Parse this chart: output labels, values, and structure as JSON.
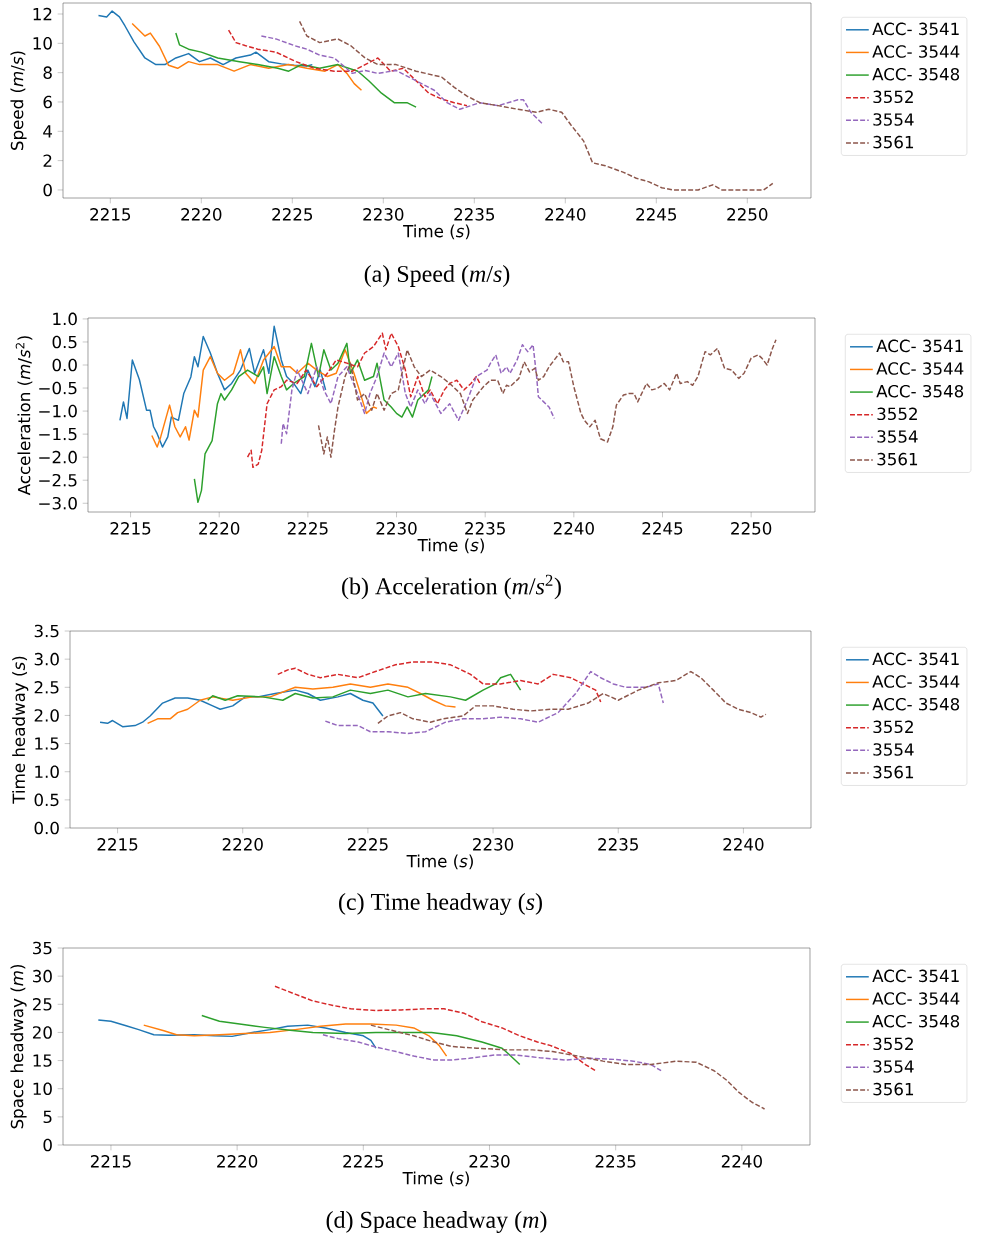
{
  "chart_data": [
    {
      "type": "line",
      "title": "(a) Speed (*m*/*s*)",
      "xlabel": "Time (*s*)",
      "ylabel": "Speed (*m*/*s*)",
      "xlim": [
        2212.4,
        2253.5
      ],
      "ylim": [
        -0.55,
        12.75
      ],
      "xticks": [
        2215,
        2220,
        2225,
        2230,
        2235,
        2240,
        2245,
        2250
      ],
      "yticks": [
        0,
        2,
        4,
        6,
        8,
        10,
        12
      ],
      "legend": "right",
      "series": [
        {
          "name": "ACC- 3541",
          "color": "#1f77b4",
          "line_style": "solid",
          "x": [
            2214.35,
            2214.8,
            2215.1,
            2215.5,
            2215.8,
            2216.3,
            2216.9,
            2217.5,
            2218,
            2218.6,
            2219.3,
            2219.9,
            2220.5,
            2221.2,
            2221.9,
            2222.7,
            2223,
            2223.7,
            2224.4,
            2225.1,
            2225.8,
            2226.1
          ],
          "values": [
            11.9,
            11.8,
            12.2,
            11.8,
            11.2,
            10.1,
            9.0,
            8.55,
            8.55,
            9.0,
            9.3,
            8.75,
            9.0,
            8.55,
            9.0,
            9.2,
            9.4,
            8.75,
            8.6,
            8.5,
            8.45,
            8.55
          ]
        },
        {
          "name": "ACC- 3544",
          "color": "#ff7f0e",
          "line_style": "solid",
          "x": [
            2216.2,
            2216.9,
            2217.2,
            2217.7,
            2218.2,
            2218.7,
            2219.3,
            2219.9,
            2220.9,
            2221.8,
            2222.7,
            2223.7,
            2224.8,
            2225.8,
            2226.8,
            2227.5,
            2228,
            2228.4,
            2228.8
          ],
          "values": [
            11.35,
            10.5,
            10.7,
            9.8,
            8.5,
            8.3,
            8.75,
            8.55,
            8.55,
            8.1,
            8.55,
            8.3,
            8.55,
            8.3,
            8.1,
            8.55,
            7.95,
            7.25,
            6.8
          ]
        },
        {
          "name": "ACC- 3548",
          "color": "#2ca02c",
          "line_style": "solid",
          "x": [
            2218.6,
            2218.8,
            2219.3,
            2220,
            2220.9,
            2222.1,
            2223.1,
            2224.2,
            2224.8,
            2225.5,
            2226.5,
            2227.5,
            2228.6,
            2229.2,
            2229.9,
            2230.6,
            2231.3,
            2231.8
          ],
          "values": [
            10.7,
            9.9,
            9.6,
            9.4,
            9.0,
            8.75,
            8.55,
            8.3,
            8.1,
            8.55,
            8.3,
            8.55,
            8.1,
            7.45,
            6.6,
            5.95,
            5.95,
            5.65
          ]
        },
        {
          "name": "3552",
          "color": "#d62728",
          "line_style": "dashed",
          "x": [
            2221.5,
            2221.9,
            2222.4,
            2223.1,
            2224.1,
            2225.2,
            2226.2,
            2227.3,
            2228.3,
            2229,
            2229.7,
            2230.4,
            2231.1,
            2231.8,
            2232.5,
            2233.2,
            2233.9,
            2234.6
          ],
          "values": [
            10.9,
            10.05,
            9.85,
            9.6,
            9.4,
            8.75,
            8.3,
            8.1,
            8.1,
            8.55,
            9.0,
            8.1,
            8.3,
            7.45,
            6.6,
            6.2,
            5.95,
            5.75
          ]
        },
        {
          "name": "3554",
          "color": "#9467bd",
          "line_style": "dashed",
          "x": [
            2223.3,
            2224.1,
            2225.1,
            2225.8,
            2226.5,
            2227.3,
            2228.3,
            2229,
            2229.7,
            2230.7,
            2231.8,
            2232.8,
            2233.5,
            2234.2,
            2235.3,
            2236.3,
            2237.4,
            2237.7,
            2238.1,
            2238.8
          ],
          "values": [
            10.5,
            10.3,
            9.85,
            9.6,
            9.2,
            9.0,
            7.95,
            8.15,
            7.95,
            8.15,
            7.45,
            6.8,
            5.95,
            5.5,
            5.95,
            5.75,
            6.15,
            6.15,
            5.3,
            4.45
          ]
        },
        {
          "name": "3561",
          "color": "#8c564b",
          "line_style": "dashed",
          "x": [
            2225.4,
            2225.8,
            2226.5,
            2227.5,
            2228.2,
            2229,
            2229.7,
            2230.7,
            2231.8,
            2233.2,
            2233.9,
            2234.6,
            2235.3,
            2236.3,
            2237.4,
            2238.4,
            2239.1,
            2239.8,
            2240.3,
            2241,
            2241.5,
            2242.2,
            2243.2,
            2243.9,
            2244.6,
            2245.3,
            2245.9,
            2247.3,
            2248.1,
            2248.6,
            2250.2,
            2250.9,
            2251.4
          ],
          "values": [
            11.5,
            10.5,
            10.05,
            10.3,
            9.85,
            9.0,
            8.55,
            8.55,
            8.1,
            7.7,
            7.0,
            6.4,
            5.95,
            5.75,
            5.5,
            5.3,
            5.5,
            5.3,
            4.45,
            3.35,
            1.85,
            1.65,
            1.2,
            0.8,
            0.55,
            0.15,
            0,
            0,
            0.35,
            0,
            0,
            0,
            0.45
          ]
        }
      ]
    },
    {
      "type": "line",
      "title": "(b) Acceleration (*m*/*s*$^{2}$)",
      "xlabel": "Time (*s*)",
      "ylabel": "Acceleration (*m*/*s*$^{2}$)",
      "xlim": [
        2212.6,
        2253.6
      ],
      "ylim": [
        -3.19,
        1.02
      ],
      "xticks": [
        2215,
        2220,
        2225,
        2230,
        2235,
        2240,
        2245,
        2250
      ],
      "yticks": [
        {
          "value": -3,
          "label": "−3.0"
        },
        {
          "value": -2.5,
          "label": "−2.5"
        },
        {
          "value": -2,
          "label": "−2.0"
        },
        {
          "value": -1.5,
          "label": "−1.5"
        },
        {
          "value": -1,
          "label": "−1.0"
        },
        {
          "value": -0.5,
          "label": "−0.5"
        },
        {
          "value": 0,
          "label": "0.0"
        },
        {
          "value": 0.5,
          "label": "0.5"
        },
        {
          "value": 1,
          "label": "1.0"
        }
      ],
      "legend": "right",
      "series": [
        {
          "name": "ACC- 3541",
          "color": "#1f77b4",
          "line_style": "solid",
          "x": [
            2214.4,
            2214.6,
            2214.8,
            2215.1,
            2215.5,
            2215.9,
            2216.1,
            2216.3,
            2216.5,
            2216.8,
            2217.1,
            2217.3,
            2217.7,
            2218.0,
            2218.4,
            2218.6,
            2218.8,
            2219.1,
            2219.5,
            2219.9,
            2220.3,
            2220.7,
            2221.2,
            2221.7,
            2222.0,
            2222.5,
            2222.8,
            2223.1,
            2223.5,
            2223.8,
            2224.2,
            2224.6,
            2225.0,
            2225.4,
            2225.7,
            2226.0
          ],
          "values": [
            -1.2,
            -0.8,
            -1.16,
            0.11,
            -0.32,
            -0.98,
            -0.98,
            -1.34,
            -1.49,
            -1.78,
            -1.56,
            -1.13,
            -1.2,
            -0.62,
            -0.26,
            0.18,
            -0.04,
            0.62,
            0.26,
            -0.18,
            -0.54,
            -0.4,
            -0.11,
            0.36,
            -0.18,
            0.33,
            -0.18,
            0.84,
            0.11,
            -0.25,
            -0.4,
            -0.62,
            -0.11,
            -0.47,
            -0.11,
            -0.54
          ]
        },
        {
          "name": "ACC- 3544",
          "color": "#ff7f0e",
          "line_style": "solid",
          "x": [
            2216.2,
            2216.5,
            2216.7,
            2217.2,
            2217.5,
            2217.8,
            2218.1,
            2218.3,
            2218.6,
            2218.8,
            2219.1,
            2219.5,
            2219.9,
            2220.3,
            2220.8,
            2221.2,
            2221.5,
            2222.0,
            2222.5,
            2223.1,
            2223.5,
            2224.0,
            2224.4,
            2225.0,
            2225.5,
            2226.1,
            2226.6,
            2227.1,
            2227.6,
            2227.9,
            2228.3,
            2228.7,
            2228.9
          ],
          "values": [
            -1.53,
            -1.78,
            -1.56,
            -0.87,
            -1.34,
            -1.56,
            -1.34,
            -1.63,
            -0.98,
            -1.13,
            -0.11,
            0.18,
            -0.18,
            -0.33,
            -0.18,
            0.33,
            -0.18,
            -0.4,
            0.11,
            0.4,
            -0.04,
            -0.04,
            -0.18,
            0.04,
            -0.11,
            -0.25,
            -0.18,
            0.33,
            -0.18,
            -0.54,
            -1.05,
            -0.91,
            -0.94
          ]
        },
        {
          "name": "ACC- 3548",
          "color": "#2ca02c",
          "line_style": "solid",
          "x": [
            2218.6,
            2218.8,
            2219.0,
            2219.2,
            2219.6,
            2219.9,
            2220.1,
            2220.3,
            2220.7,
            2221.1,
            2221.6,
            2222.2,
            2222.5,
            2222.7,
            2223.1,
            2223.5,
            2223.8,
            2224.2,
            2224.8,
            2225.2,
            2225.6,
            2225.9,
            2226.3,
            2226.7,
            2227.2,
            2227.4,
            2227.8,
            2228.2,
            2228.7,
            2228.9,
            2229.3,
            2229.7,
            2230.0,
            2230.3,
            2230.6,
            2230.9,
            2231.2,
            2231.8,
            2232.0
          ],
          "values": [
            -2.47,
            -2.98,
            -2.72,
            -1.93,
            -1.64,
            -0.84,
            -0.62,
            -0.76,
            -0.54,
            -0.25,
            -0.11,
            -0.25,
            -0.04,
            -0.62,
            0.18,
            -0.25,
            -0.54,
            -0.4,
            -0.25,
            0.47,
            -0.25,
            0.33,
            -0.11,
            0.04,
            0.47,
            -0.18,
            0.11,
            -0.33,
            -0.25,
            0.04,
            -0.76,
            -0.91,
            -1.05,
            -1.13,
            -0.91,
            -1.13,
            -0.76,
            -0.54,
            -0.25
          ]
        },
        {
          "name": "3552",
          "color": "#d62728",
          "line_style": "dashed",
          "x": [
            2221.6,
            2221.8,
            2221.9,
            2222.2,
            2222.4,
            2222.7,
            2223.1,
            2223.5,
            2223.8,
            2224.4,
            2224.9,
            2225.5,
            2226.1,
            2226.6,
            2227.2,
            2227.8,
            2228.2,
            2228.7,
            2229.2,
            2229.4,
            2229.7,
            2230.1,
            2230.5,
            2230.8,
            2231.2,
            2231.6,
            2231.9,
            2232.3,
            2232.7,
            2233.0,
            2233.4,
            2233.8,
            2234.2,
            2234.5,
            2234.7
          ],
          "values": [
            -2.0,
            -1.85,
            -2.22,
            -2.15,
            -1.85,
            -0.84,
            -0.54,
            -0.47,
            -0.33,
            -0.4,
            -0.11,
            -0.47,
            -0.18,
            0.11,
            0.04,
            -0.04,
            0.26,
            0.4,
            0.69,
            0.33,
            0.69,
            0.4,
            -0.11,
            -0.69,
            -0.25,
            -0.69,
            -0.54,
            -0.84,
            -0.54,
            -0.4,
            -0.33,
            -0.54,
            -0.4,
            -0.25,
            -0.4
          ]
        },
        {
          "name": "3554",
          "color": "#9467bd",
          "line_style": "dashed",
          "x": [
            2223.5,
            2223.6,
            2223.8,
            2224.1,
            2224.4,
            2225.0,
            2225.5,
            2225.9,
            2226.3,
            2226.7,
            2227.2,
            2227.8,
            2228.2,
            2228.5,
            2228.9,
            2229.3,
            2229.7,
            2230.1,
            2230.5,
            2230.8,
            2231.2,
            2231.6,
            2231.9,
            2232.5,
            2233.0,
            2233.5,
            2234.0,
            2234.5,
            2235.1,
            2235.3,
            2235.6,
            2235.9,
            2236.2,
            2236.4,
            2236.8,
            2237.1,
            2237.4,
            2237.7,
            2237.9,
            2238.0,
            2238.3,
            2238.6,
            2238.9
          ],
          "values": [
            -1.71,
            -1.27,
            -1.49,
            -0.54,
            -0.11,
            -0.62,
            -0.04,
            -0.54,
            -0.84,
            -0.25,
            -0.04,
            -0.62,
            -1.05,
            -0.62,
            -0.25,
            0.26,
            -0.04,
            0.26,
            -0.62,
            -0.91,
            -0.54,
            -0.84,
            -0.62,
            -1.05,
            -0.84,
            -1.2,
            -0.76,
            -0.25,
            -0.11,
            0.04,
            0.22,
            -0.18,
            -0.04,
            -0.18,
            0.11,
            0.44,
            0.29,
            0.44,
            -0.25,
            -0.69,
            -0.8,
            -0.91,
            -1.16
          ]
        },
        {
          "name": "3561",
          "color": "#8c564b",
          "line_style": "dashed",
          "x": [
            2225.6,
            2225.9,
            2226.1,
            2226.3,
            2226.5,
            2226.7,
            2227.1,
            2227.4,
            2227.8,
            2228.2,
            2228.6,
            2228.9,
            2229.3,
            2229.7,
            2230.1,
            2230.6,
            2231.0,
            2231.4,
            2231.9,
            2232.5,
            2233.0,
            2233.6,
            2234.0,
            2234.3,
            2234.9,
            2235.3,
            2235.7,
            2236.0,
            2236.2,
            2236.4,
            2236.9,
            2237.2,
            2237.5,
            2237.8,
            2238.0,
            2238.3,
            2238.6,
            2238.9,
            2239.2,
            2239.4,
            2239.7,
            2240.0,
            2240.4,
            2240.6,
            2240.9,
            2241.2,
            2241.5,
            2241.9,
            2242.2,
            2242.4,
            2242.8,
            2243.1,
            2243.4,
            2243.6,
            2244.1,
            2244.4,
            2244.7,
            2245.1,
            2245.4,
            2245.8,
            2246.0,
            2246.4,
            2246.7,
            2247.0,
            2247.4,
            2247.7,
            2248.1,
            2248.5,
            2248.9,
            2249.3,
            2249.6,
            2250.0,
            2250.4,
            2250.6,
            2250.9,
            2251.2,
            2251.4
          ],
          "values": [
            -1.31,
            -1.93,
            -1.56,
            -2.0,
            -1.42,
            -0.91,
            -0.25,
            0.04,
            -0.76,
            -0.62,
            -0.98,
            -0.62,
            -0.98,
            -0.62,
            -0.54,
            0.33,
            -0.04,
            -0.25,
            -0.11,
            -0.25,
            -0.4,
            -0.62,
            -1.05,
            -0.76,
            -0.47,
            -0.33,
            -0.33,
            -0.62,
            -0.44,
            -0.47,
            -0.29,
            0.07,
            -0.15,
            -0.07,
            -0.33,
            -0.25,
            -0.04,
            0.11,
            0.26,
            0.07,
            0.07,
            -0.47,
            -1.05,
            -1.2,
            -1.34,
            -1.2,
            -1.6,
            -1.67,
            -1.34,
            -0.87,
            -0.65,
            -0.62,
            -0.62,
            -0.8,
            -0.4,
            -0.54,
            -0.51,
            -0.4,
            -0.54,
            -0.18,
            -0.4,
            -0.36,
            -0.44,
            -0.25,
            0.29,
            0.22,
            0.36,
            -0.07,
            -0.11,
            -0.29,
            -0.18,
            0.15,
            0.22,
            0.15,
            0.0,
            0.36,
            0.55
          ]
        }
      ]
    },
    {
      "type": "line",
      "title": "(c) Time headway (*s*)",
      "xlabel": "Time (*s*)",
      "ylabel": "Time headway (*s*)",
      "xlim": [
        2213.1,
        2242.7
      ],
      "ylim": [
        0,
        3.5
      ],
      "xticks": [
        2215,
        2220,
        2225,
        2230,
        2235,
        2240
      ],
      "yticks": [
        {
          "value": 0,
          "label": "0.0"
        },
        {
          "value": 0.5,
          "label": "0.5"
        },
        {
          "value": 1,
          "label": "1.0"
        },
        {
          "value": 1.5,
          "label": "1.5"
        },
        {
          "value": 2,
          "label": "2.0"
        },
        {
          "value": 2.5,
          "label": "2.5"
        },
        {
          "value": 3,
          "label": "3.0"
        },
        {
          "value": 3.5,
          "label": "3.5"
        }
      ],
      "legend": "right",
      "series": [
        {
          "name": "ACC- 3541",
          "color": "#1f77b4",
          "line_style": "solid",
          "x": [
            2214.3,
            2214.6,
            2214.8,
            2215.2,
            2215.7,
            2216.0,
            2216.3,
            2216.8,
            2217.3,
            2217.8,
            2218.3,
            2218.8,
            2219.1,
            2219.6,
            2220.1,
            2220.6,
            2221.3,
            2222.1,
            2222.6,
            2223.1,
            2223.8,
            2224.3,
            2224.8,
            2225.2,
            2225.6
          ],
          "values": [
            1.88,
            1.86,
            1.91,
            1.8,
            1.82,
            1.88,
            1.99,
            2.22,
            2.31,
            2.31,
            2.27,
            2.17,
            2.11,
            2.17,
            2.33,
            2.33,
            2.39,
            2.45,
            2.39,
            2.27,
            2.33,
            2.39,
            2.27,
            2.22,
            1.99
          ]
        },
        {
          "name": "ACC- 3544",
          "color": "#ff7f0e",
          "line_style": "solid",
          "x": [
            2216.2,
            2216.6,
            2217.1,
            2217.4,
            2217.8,
            2218.3,
            2218.8,
            2219.6,
            2220.4,
            2221.1,
            2222.1,
            2222.8,
            2223.6,
            2224.3,
            2225.1,
            2225.8,
            2226.6,
            2227.1,
            2227.6,
            2228.1,
            2228.5
          ],
          "values": [
            1.86,
            1.94,
            1.94,
            2.05,
            2.11,
            2.27,
            2.33,
            2.27,
            2.33,
            2.33,
            2.5,
            2.47,
            2.5,
            2.56,
            2.5,
            2.56,
            2.5,
            2.39,
            2.27,
            2.17,
            2.15
          ]
        },
        {
          "name": "ACC- 3548",
          "color": "#2ca02c",
          "line_style": "solid",
          "x": [
            2218.6,
            2218.8,
            2219.3,
            2219.8,
            2220.8,
            2221.6,
            2222.1,
            2222.8,
            2223.6,
            2224.3,
            2225.1,
            2225.8,
            2226.6,
            2227.3,
            2228.3,
            2228.9,
            2229.6,
            2230.1,
            2230.3,
            2230.7,
            2231.1
          ],
          "values": [
            2.27,
            2.35,
            2.27,
            2.35,
            2.33,
            2.27,
            2.39,
            2.31,
            2.33,
            2.45,
            2.39,
            2.45,
            2.33,
            2.39,
            2.33,
            2.27,
            2.45,
            2.56,
            2.67,
            2.73,
            2.45
          ]
        },
        {
          "name": "3552",
          "color": "#d62728",
          "line_style": "dashed",
          "x": [
            2221.4,
            2221.8,
            2222.1,
            2222.6,
            2223.1,
            2223.8,
            2224.6,
            2225.3,
            2226.1,
            2226.8,
            2227.6,
            2228.3,
            2229.1,
            2229.6,
            2230.3,
            2231.1,
            2231.8,
            2232.4,
            2233.1,
            2233.6,
            2234.1,
            2234.3
          ],
          "values": [
            2.73,
            2.81,
            2.84,
            2.73,
            2.67,
            2.73,
            2.67,
            2.78,
            2.9,
            2.95,
            2.95,
            2.9,
            2.73,
            2.56,
            2.56,
            2.62,
            2.56,
            2.73,
            2.67,
            2.56,
            2.45,
            2.24
          ]
        },
        {
          "name": "3554",
          "color": "#9467bd",
          "line_style": "dashed",
          "x": [
            2223.3,
            2223.8,
            2224.6,
            2225.1,
            2225.8,
            2226.6,
            2227.3,
            2228.1,
            2228.8,
            2229.6,
            2230.3,
            2231.1,
            2231.8,
            2232.6,
            2233.3,
            2233.9,
            2234.3,
            2234.8,
            2235.3,
            2236.1,
            2236.6,
            2236.8
          ],
          "values": [
            1.9,
            1.82,
            1.82,
            1.71,
            1.71,
            1.68,
            1.71,
            1.88,
            1.94,
            1.94,
            1.97,
            1.94,
            1.88,
            2.05,
            2.39,
            2.78,
            2.67,
            2.56,
            2.5,
            2.5,
            2.56,
            2.22
          ]
        },
        {
          "name": "3561",
          "color": "#8c564b",
          "line_style": "dashed",
          "x": [
            2225.4,
            2225.8,
            2226.3,
            2226.8,
            2227.5,
            2228.0,
            2228.8,
            2229.3,
            2230.0,
            2230.8,
            2231.5,
            2232.3,
            2233.0,
            2233.8,
            2234.4,
            2235.0,
            2235.8,
            2236.6,
            2237.3,
            2237.9,
            2238.3,
            2238.8,
            2239.3,
            2239.8,
            2240.3,
            2240.7,
            2240.9
          ],
          "values": [
            1.86,
            1.99,
            2.05,
            1.94,
            1.88,
            1.94,
            1.99,
            2.17,
            2.17,
            2.11,
            2.08,
            2.11,
            2.11,
            2.22,
            2.39,
            2.27,
            2.45,
            2.58,
            2.62,
            2.78,
            2.67,
            2.45,
            2.22,
            2.11,
            2.05,
            1.97,
            2.02
          ]
        }
      ]
    },
    {
      "type": "line",
      "title": "(d) Space headway (*m*)",
      "xlabel": "Time (*s*)",
      "ylabel": "Space headway (*m*)",
      "xlim": [
        2213.1,
        2242.7
      ],
      "ylim": [
        0,
        35
      ],
      "xticks": [
        2215,
        2220,
        2225,
        2230,
        2235,
        2240
      ],
      "yticks": [
        0,
        5,
        10,
        15,
        20,
        25,
        30,
        35
      ],
      "legend": "right",
      "series": [
        {
          "name": "ACC- 3541",
          "color": "#1f77b4",
          "line_style": "solid",
          "x": [
            2214.5,
            2215.0,
            2215.6,
            2216.1,
            2216.7,
            2217.3,
            2218.3,
            2219.1,
            2219.8,
            2220.6,
            2221.3,
            2222.0,
            2222.8,
            2223.5,
            2224.3,
            2225.0,
            2225.3,
            2225.5
          ],
          "values": [
            22.2,
            22.0,
            21.2,
            20.5,
            19.6,
            19.5,
            19.6,
            19.4,
            19.3,
            20.0,
            20.5,
            21.1,
            21.3,
            20.8,
            20.0,
            19.4,
            18.6,
            17.2
          ]
        },
        {
          "name": "ACC- 3544",
          "color": "#ff7f0e",
          "line_style": "solid",
          "x": [
            2216.3,
            2217.1,
            2217.6,
            2218.3,
            2219.3,
            2220.3,
            2221.3,
            2222.3,
            2223.3,
            2224.3,
            2225.3,
            2226.3,
            2227.0,
            2227.6,
            2228.0,
            2228.3
          ],
          "values": [
            21.3,
            20.3,
            19.6,
            19.4,
            19.6,
            19.8,
            20.0,
            20.5,
            21.1,
            21.5,
            21.5,
            21.3,
            20.8,
            19.4,
            17.7,
            15.8
          ]
        },
        {
          "name": "ACC- 3548",
          "color": "#2ca02c",
          "line_style": "solid",
          "x": [
            2218.6,
            2219.3,
            2220.1,
            2221.1,
            2222.1,
            2223.0,
            2224.3,
            2225.5,
            2226.7,
            2227.7,
            2228.7,
            2229.7,
            2230.5,
            2230.8,
            2231.2
          ],
          "values": [
            23.0,
            22.0,
            21.5,
            20.9,
            20.4,
            20.0,
            19.8,
            20.0,
            20.0,
            20.0,
            19.4,
            18.3,
            17.2,
            16.0,
            14.3
          ]
        },
        {
          "name": "3552",
          "color": "#d62728",
          "line_style": "dashed",
          "x": [
            2221.5,
            2222.3,
            2223.0,
            2223.8,
            2224.5,
            2225.5,
            2226.5,
            2227.5,
            2228.2,
            2229.0,
            2229.7,
            2230.5,
            2231.2,
            2231.9,
            2232.4,
            2233.2,
            2233.8,
            2234.2
          ],
          "values": [
            28.2,
            26.8,
            25.6,
            24.8,
            24.2,
            23.9,
            24.0,
            24.2,
            24.2,
            23.4,
            21.9,
            20.8,
            19.4,
            18.3,
            17.7,
            16.3,
            14.3,
            13.2
          ]
        },
        {
          "name": "3554",
          "color": "#9467bd",
          "line_style": "dashed",
          "x": [
            2223.4,
            2224.0,
            2224.8,
            2225.5,
            2226.3,
            2227.0,
            2227.8,
            2228.5,
            2229.2,
            2230.2,
            2231.0,
            2232.0,
            2233.0,
            2234.0,
            2235.0,
            2235.7,
            2236.4,
            2236.8
          ],
          "values": [
            19.6,
            18.9,
            18.3,
            17.4,
            16.6,
            15.8,
            15.1,
            15.1,
            15.4,
            16.0,
            16.0,
            15.5,
            15.1,
            15.4,
            15.2,
            14.9,
            14.3,
            13.2
          ]
        },
        {
          "name": "3561",
          "color": "#8c564b",
          "line_style": "dashed",
          "x": [
            2225.3,
            2226.0,
            2227.0,
            2227.8,
            2228.5,
            2229.5,
            2230.7,
            2231.7,
            2232.5,
            2233.5,
            2234.5,
            2235.4,
            2236.4,
            2237.4,
            2238.2,
            2238.9,
            2239.4,
            2239.9,
            2240.4,
            2240.9
          ],
          "values": [
            21.3,
            20.5,
            19.4,
            18.3,
            17.5,
            17.2,
            16.9,
            16.9,
            16.6,
            15.8,
            14.9,
            14.3,
            14.3,
            14.9,
            14.7,
            13.2,
            11.5,
            9.3,
            7.6,
            6.4
          ]
        }
      ]
    }
  ]
}
